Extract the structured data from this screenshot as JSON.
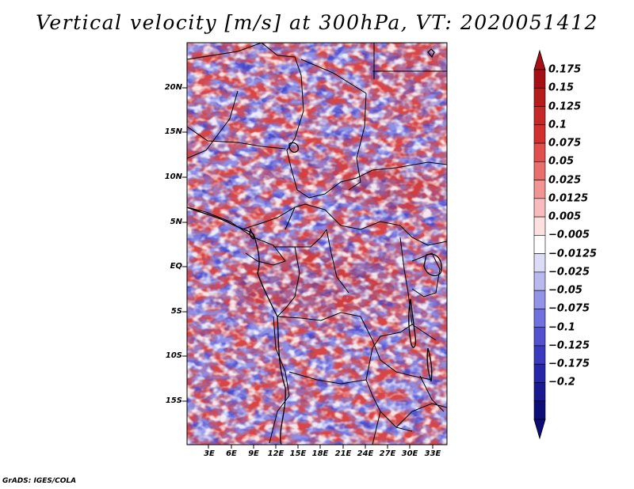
{
  "title": "Vertical velocity [m/s] at 300hPa, VT: 2020051412",
  "footer": "GrADS: IGES/COLA",
  "map": {
    "lat_labels": [
      "20N",
      "15N",
      "10N",
      "5N",
      "EQ",
      "5S",
      "10S",
      "15S"
    ],
    "lon_labels": [
      "3E",
      "6E",
      "9E",
      "12E",
      "15E",
      "18E",
      "21E",
      "24E",
      "27E",
      "30E",
      "33E"
    ]
  },
  "colorbar": {
    "labels": [
      "0.175",
      "0.15",
      "0.125",
      "0.1",
      "0.075",
      "0.05",
      "0.025",
      "0.0125",
      "0.005",
      "-0.005",
      "-0.0125",
      "-0.025",
      "-0.05",
      "-0.075",
      "-0.1",
      "-0.125",
      "-0.175",
      "-0.2"
    ],
    "colors": [
      "#a50f15",
      "#b71c1c",
      "#c62828",
      "#d32f2f",
      "#e04e4e",
      "#e96f6f",
      "#f19494",
      "#f8bcbc",
      "#fde0e0",
      "#ffffff",
      "#dcdcf7",
      "#b9b9f0",
      "#9393e8",
      "#7070df",
      "#5252d0",
      "#3a3abf",
      "#2626aa",
      "#1a1a90",
      "#0d0d78"
    ],
    "extend_top_color": "#a50f15",
    "extend_bottom_color": "#0d0d78"
  },
  "colors": {
    "rising": "#c62828",
    "sinking": "#4a4ad8",
    "border": "#000000"
  }
}
